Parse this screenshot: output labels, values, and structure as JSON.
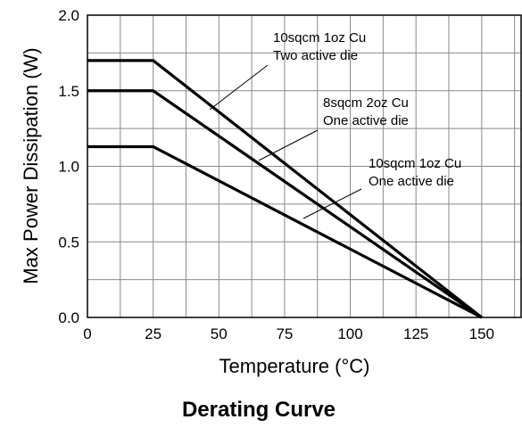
{
  "chart_data": {
    "type": "line",
    "title": "Derating Curve",
    "xlabel": "Temperature (°C)",
    "ylabel": "Max Power Dissipation (W)",
    "xlim": [
      0,
      165
    ],
    "ylim": [
      0,
      2.0
    ],
    "x_ticks": [
      "0",
      "25",
      "50",
      "75",
      "100",
      "125",
      "150"
    ],
    "y_ticks": [
      "0.0",
      "0.5",
      "1.0",
      "1.5",
      "2.0"
    ],
    "grid": true,
    "series": [
      {
        "name": "10sqcm 1oz Cu Two active die",
        "x": [
          0,
          25,
          150
        ],
        "y": [
          1.7,
          1.7,
          0
        ]
      },
      {
        "name": "8sqcm 2oz Cu One active die",
        "x": [
          0,
          25,
          150
        ],
        "y": [
          1.5,
          1.5,
          0
        ]
      },
      {
        "name": "10sqcm 1oz Cu One active die",
        "x": [
          0,
          25,
          150
        ],
        "y": [
          1.13,
          1.13,
          0
        ]
      }
    ],
    "annotations": [
      {
        "line1": "10sqcm 1oz Cu",
        "line2": "Two active die",
        "series_index": 0
      },
      {
        "line1": "8sqcm 2oz Cu",
        "line2": "One active die",
        "series_index": 1
      },
      {
        "line1": "10sqcm 1oz Cu",
        "line2": "One active die",
        "series_index": 2
      }
    ]
  }
}
